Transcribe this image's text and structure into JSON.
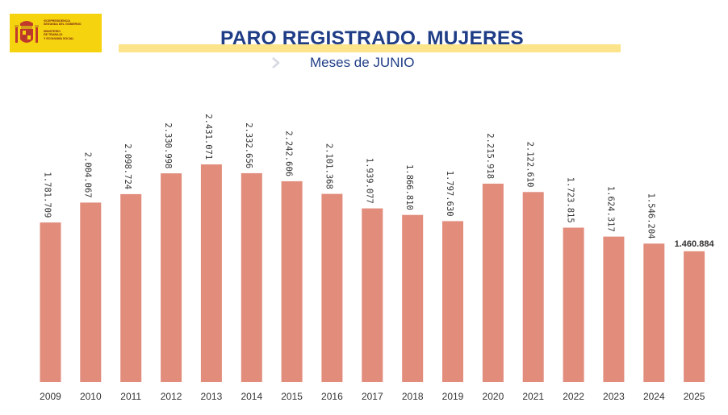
{
  "header": {
    "org_lines": [
      "Vicepresidencia",
      "Segunda del Gobierno",
      "Ministerio",
      "de Trabajo",
      "y Economía Social"
    ],
    "title": "PARO REGISTRADO. MUJERES",
    "subtitle": "Meses de JUNIO",
    "brand_color": "#f5d30f",
    "title_color": "#1f3d86"
  },
  "chart_data": {
    "type": "bar",
    "title": "PARO REGISTRADO. MUJERES",
    "subtitle": "Meses de JUNIO",
    "categories": [
      "2009",
      "2010",
      "2011",
      "2012",
      "2013",
      "2014",
      "2015",
      "2016",
      "2017",
      "2018",
      "2019",
      "2020",
      "2021",
      "2022",
      "2023",
      "2024",
      "2025"
    ],
    "values": [
      1781709,
      2004067,
      2098724,
      2330998,
      2431071,
      2332656,
      2242606,
      2101368,
      1939077,
      1866810,
      1797630,
      2215918,
      2122610,
      1723815,
      1624317,
      1546204,
      1460884
    ],
    "labels": [
      "1.781.709",
      "2.004.067",
      "2.098.724",
      "2.330.998",
      "2.431.071",
      "2.332.656",
      "2.242.606",
      "2.101.368",
      "1.939.077",
      "1.866.810",
      "1.797.630",
      "2.215.918",
      "2.122.610",
      "1.723.815",
      "1.624.317",
      "1.546.204",
      "1.460.884"
    ],
    "bar_color": "#e28c7c",
    "ylim": [
      0,
      2500000
    ],
    "grid": false,
    "legend": "none"
  }
}
